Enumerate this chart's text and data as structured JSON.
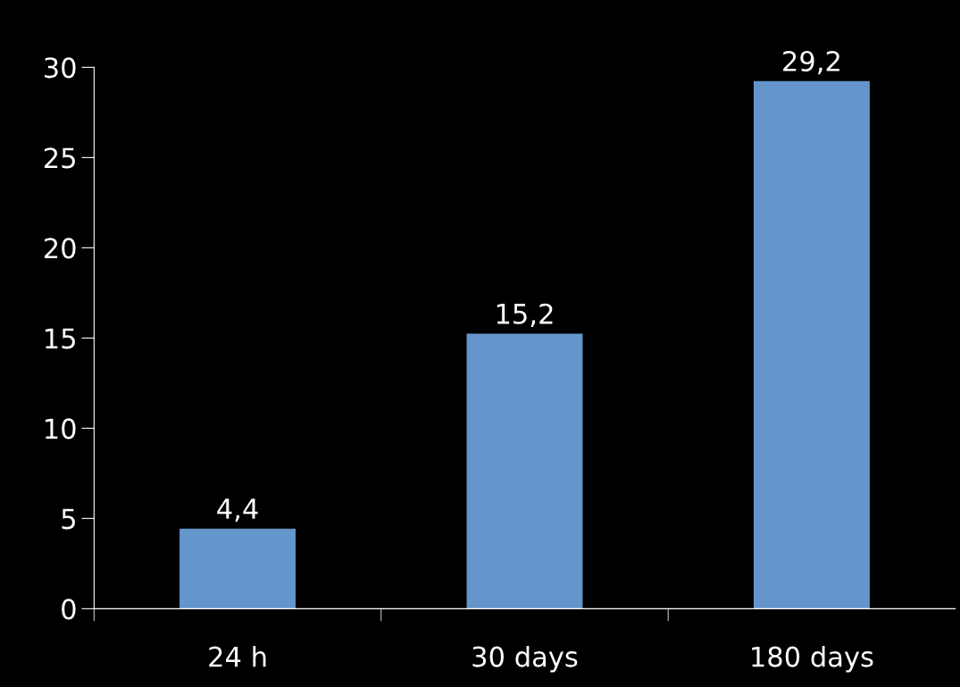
{
  "chart_data": {
    "type": "bar",
    "categories": [
      "24 h",
      "30 days",
      "180 days"
    ],
    "values": [
      4.4,
      15.2,
      29.2
    ],
    "color": "#6495cb",
    "value_labels": [
      "4,4",
      "15,2",
      "29,2"
    ],
    "ylim": [
      0,
      30
    ],
    "yticks": [
      0,
      5,
      10,
      15,
      20,
      25,
      30
    ],
    "grid": false,
    "legend": false
  }
}
